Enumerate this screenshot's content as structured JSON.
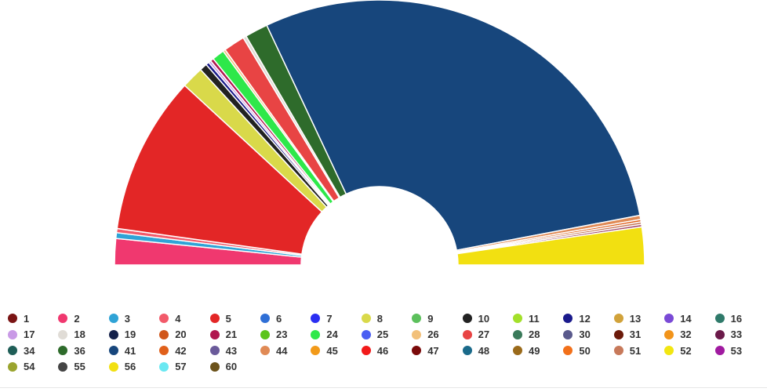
{
  "chart_data": {
    "type": "pie",
    "variant": "semicircle-parliament",
    "title": "",
    "slices": [
      {
        "name": "2",
        "value": 3.2,
        "color": "#f0386f"
      },
      {
        "name": "3",
        "value": 0.7,
        "color": "#2fa3d6"
      },
      {
        "name": "4",
        "value": 0.5,
        "color": "#f25a6a"
      },
      {
        "name": "5",
        "value": 19.3,
        "color": "#e32626"
      },
      {
        "name": "8",
        "value": 2.7,
        "color": "#d9d94a"
      },
      {
        "name": "10",
        "value": 0.9,
        "color": "#222222"
      },
      {
        "name": "12",
        "value": 0.4,
        "color": "#1a1a8c"
      },
      {
        "name": "17",
        "value": 0.3,
        "color": "#c99ae6"
      },
      {
        "name": "21",
        "value": 0.4,
        "color": "#b0174f"
      },
      {
        "name": "24",
        "value": 1.5,
        "color": "#2ee84a"
      },
      {
        "name": "26",
        "value": 0.3,
        "color": "#f2c07a"
      },
      {
        "name": "27",
        "value": 2.6,
        "color": "#e84444"
      },
      {
        "name": "18",
        "value": 0.4,
        "color": "#e0dcd6"
      },
      {
        "name": "36",
        "value": 2.8,
        "color": "#2e6b2b"
      },
      {
        "name": "41",
        "value": 58.0,
        "color": "#17467c"
      },
      {
        "name": "44",
        "value": 0.5,
        "color": "#e08a55"
      },
      {
        "name": "42",
        "value": 0.3,
        "color": "#e0601a"
      },
      {
        "name": "51",
        "value": 0.3,
        "color": "#c7795a"
      },
      {
        "name": "33",
        "value": 0.3,
        "color": "#a44b6b"
      },
      {
        "name": "56",
        "value": 4.6,
        "color": "#f2e011"
      }
    ],
    "legend_position": "bottom"
  },
  "legend": [
    {
      "label": "1",
      "color": "#7a1414"
    },
    {
      "label": "2",
      "color": "#f0386f"
    },
    {
      "label": "3",
      "color": "#2fa3d6"
    },
    {
      "label": "4",
      "color": "#f25a6a"
    },
    {
      "label": "5",
      "color": "#e32626"
    },
    {
      "label": "6",
      "color": "#2f6fd6"
    },
    {
      "label": "7",
      "color": "#2a2ef2"
    },
    {
      "label": "8",
      "color": "#d9d94a"
    },
    {
      "label": "9",
      "color": "#5cc05c"
    },
    {
      "label": "10",
      "color": "#222222"
    },
    {
      "label": "11",
      "color": "#a3e02a"
    },
    {
      "label": "12",
      "color": "#1a1a8c"
    },
    {
      "label": "13",
      "color": "#d1a23a"
    },
    {
      "label": "14",
      "color": "#7a4ad6"
    },
    {
      "label": "16",
      "color": "#2f7a6a"
    },
    {
      "label": "17",
      "color": "#c99ae6"
    },
    {
      "label": "18",
      "color": "#e0dcd6"
    },
    {
      "label": "19",
      "color": "#14214a"
    },
    {
      "label": "20",
      "color": "#d0561a"
    },
    {
      "label": "21",
      "color": "#b0174f"
    },
    {
      "label": "23",
      "color": "#5cc41a"
    },
    {
      "label": "24",
      "color": "#2ee84a"
    },
    {
      "label": "25",
      "color": "#4a5ef2"
    },
    {
      "label": "26",
      "color": "#f2c07a"
    },
    {
      "label": "27",
      "color": "#e84444"
    },
    {
      "label": "28",
      "color": "#3a7a5a"
    },
    {
      "label": "30",
      "color": "#5a5a8c"
    },
    {
      "label": "31",
      "color": "#6b1a0a"
    },
    {
      "label": "32",
      "color": "#f2941a"
    },
    {
      "label": "33",
      "color": "#6b1a4a"
    },
    {
      "label": "34",
      "color": "#1f5e57"
    },
    {
      "label": "36",
      "color": "#2e6b2b"
    },
    {
      "label": "41",
      "color": "#17467c"
    },
    {
      "label": "42",
      "color": "#e0601a"
    },
    {
      "label": "43",
      "color": "#6a5a9a"
    },
    {
      "label": "44",
      "color": "#e08a55"
    },
    {
      "label": "45",
      "color": "#f29a1a"
    },
    {
      "label": "46",
      "color": "#f21a1a"
    },
    {
      "label": "47",
      "color": "#7a0a0a"
    },
    {
      "label": "48",
      "color": "#1a6a8a"
    },
    {
      "label": "49",
      "color": "#9a6a1a"
    },
    {
      "label": "50",
      "color": "#f2701a"
    },
    {
      "label": "51",
      "color": "#c7795a"
    },
    {
      "label": "52",
      "color": "#f2e611"
    },
    {
      "label": "53",
      "color": "#a01aa0"
    },
    {
      "label": "54",
      "color": "#9aa42e"
    },
    {
      "label": "55",
      "color": "#444444"
    },
    {
      "label": "56",
      "color": "#f2e011"
    },
    {
      "label": "57",
      "color": "#6ae8f2"
    },
    {
      "label": "60",
      "color": "#6b521a"
    }
  ]
}
